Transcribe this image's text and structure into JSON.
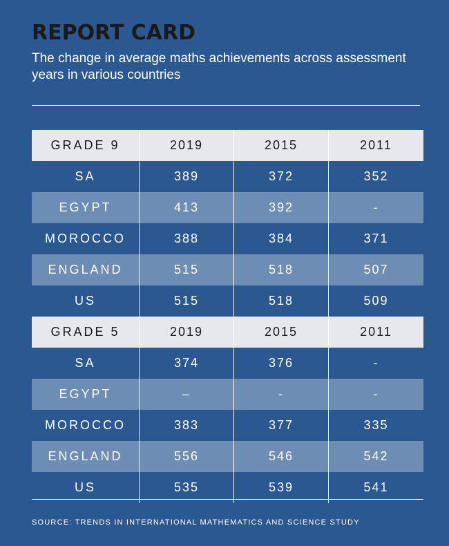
{
  "title": "REPORT CARD",
  "subtitle": "The change in average maths achievements across assessment years in various countries",
  "source": "SOURCE: TRENDS IN INTERNATIONAL MATHEMATICS AND SCIENCE STUDY",
  "colors": {
    "background": "#2c5891",
    "header_row": "#e6e8ee",
    "shaded_row": "#6d8db5",
    "title": "#1a1a1a"
  },
  "chart_data": {
    "type": "table",
    "title": "REPORT CARD",
    "subtitle": "The change in average maths achievements across assessment years in various countries",
    "sections": [
      {
        "header": [
          "GRADE 9",
          "2019",
          "2015",
          "2011"
        ],
        "rows": [
          [
            "SA",
            "389",
            "372",
            "352"
          ],
          [
            "EGYPT",
            "413",
            "392",
            "-"
          ],
          [
            "MOROCCO",
            "388",
            "384",
            "371"
          ],
          [
            "ENGLAND",
            "515",
            "518",
            "507"
          ],
          [
            "US",
            "515",
            "518",
            "509"
          ]
        ]
      },
      {
        "header": [
          "GRADE 5",
          "2019",
          "2015",
          "2011"
        ],
        "rows": [
          [
            "SA",
            "374",
            "376",
            "-"
          ],
          [
            "EGYPT",
            "–",
            "-",
            "-"
          ],
          [
            "MOROCCO",
            "383",
            "377",
            "335"
          ],
          [
            "ENGLAND",
            "556",
            "546",
            "542"
          ],
          [
            "US",
            "535",
            "539",
            "541"
          ]
        ]
      }
    ]
  }
}
